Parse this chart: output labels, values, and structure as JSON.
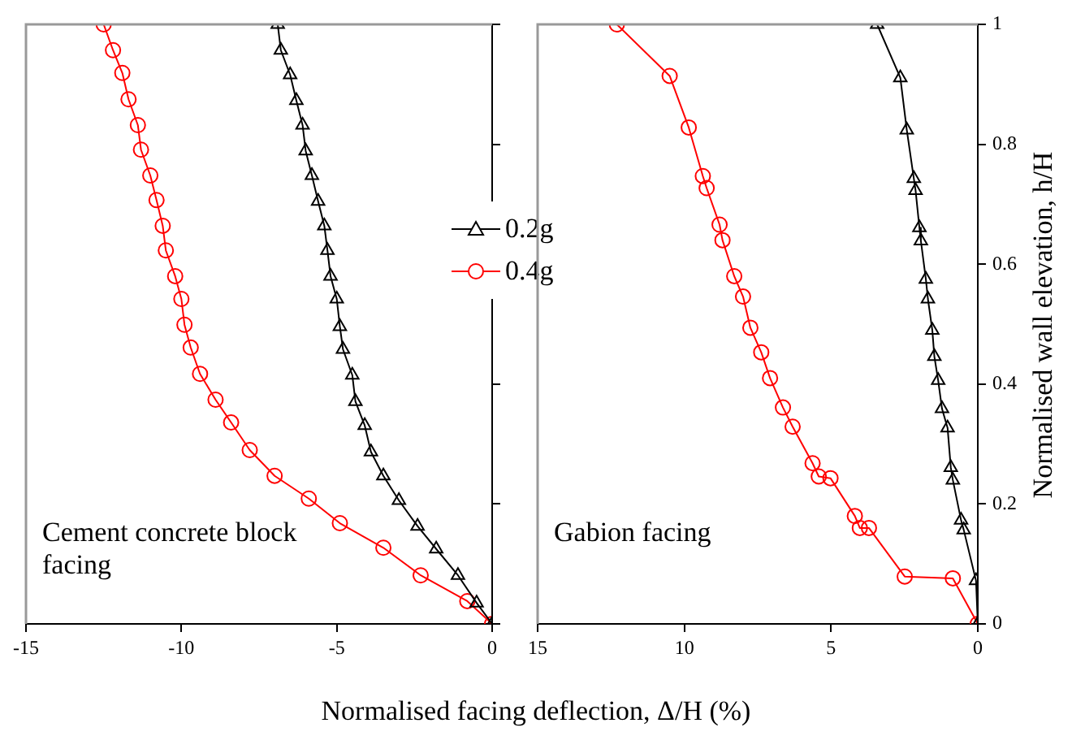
{
  "chart_data": [
    {
      "type": "line",
      "xlabel": "Normalised facing deflection, Δ/H (%)",
      "annotations": [
        "Cement concrete block facing"
      ],
      "xlim": [
        -15,
        0
      ],
      "xticks": [
        -15,
        -10,
        -5,
        0
      ],
      "ylim": [
        0,
        1
      ],
      "yticks": [
        {
          "value": 0,
          "label": null
        },
        {
          "value": 0.2,
          "label": null
        },
        {
          "value": 0.4,
          "label": null
        },
        {
          "value": 0.6,
          "label": null
        },
        {
          "value": 0.8,
          "label": null
        },
        {
          "value": 1,
          "label": null
        }
      ],
      "tick_labels": "x",
      "grid": false,
      "legend": "right",
      "line_style": "solid",
      "series": [
        {
          "name": "0.2g",
          "color": "#000000",
          "marker": "triangle",
          "x": [
            -6.9,
            -6.8,
            -6.5,
            -6.3,
            -6.1,
            -6.0,
            -5.8,
            -5.6,
            -5.4,
            -5.3,
            -5.2,
            -5.0,
            -4.9,
            -4.8,
            -4.5,
            -4.4,
            -4.1,
            -3.9,
            -3.5,
            -3.0,
            -2.4,
            -1.8,
            -1.1,
            -0.5,
            0
          ],
          "values": [
            1,
            0.957,
            0.916,
            0.873,
            0.832,
            0.789,
            0.748,
            0.705,
            0.664,
            0.623,
            0.58,
            0.542,
            0.496,
            0.458,
            0.415,
            0.371,
            0.331,
            0.287,
            0.247,
            0.206,
            0.163,
            0.125,
            0.081,
            0.035,
            0
          ]
        },
        {
          "name": "0.4g",
          "color": "#ff0000",
          "marker": "circle",
          "x": [
            -12.5,
            -12.2,
            -11.9,
            -11.7,
            -11.4,
            -11.3,
            -11.0,
            -10.8,
            -10.6,
            -10.5,
            -10.2,
            -10.0,
            -9.9,
            -9.7,
            -9.4,
            -8.9,
            -8.4,
            -7.8,
            -7.0,
            -5.9,
            -4.9,
            -3.5,
            -2.3,
            -0.8,
            0
          ],
          "values": [
            1,
            0.957,
            0.919,
            0.875,
            0.832,
            0.791,
            0.748,
            0.707,
            0.664,
            0.623,
            0.58,
            0.542,
            0.499,
            0.461,
            0.417,
            0.374,
            0.336,
            0.29,
            0.247,
            0.209,
            0.168,
            0.127,
            0.081,
            0.038,
            0
          ]
        }
      ]
    },
    {
      "type": "line",
      "ylabel": "Normalised wall elevation, h/H",
      "annotations": [
        "Gabion facing"
      ],
      "xlim": [
        15,
        0
      ],
      "xticks": [
        15,
        10,
        5,
        0
      ],
      "ylim": [
        0,
        1
      ],
      "yticks": [
        0,
        0.2,
        0.4,
        0.6,
        0.8,
        1
      ],
      "grid": false,
      "line_style": "solid",
      "series": [
        {
          "color": "#000000",
          "marker": "triangle",
          "x": [
            3.43,
            2.64,
            2.42,
            2.18,
            2.12,
            1.99,
            1.94,
            1.77,
            1.7,
            1.55,
            1.48,
            1.35,
            1.22,
            1.03,
            0.92,
            0.85,
            0.57,
            0.48,
            0.06,
            0
          ],
          "values": [
            1,
            0.911,
            0.824,
            0.743,
            0.723,
            0.661,
            0.639,
            0.575,
            0.542,
            0.49,
            0.446,
            0.406,
            0.359,
            0.327,
            0.261,
            0.24,
            0.173,
            0.157,
            0.072,
            0
          ]
        },
        {
          "color": "#ff0000",
          "marker": "circle",
          "x": [
            12.3,
            10.5,
            9.85,
            9.37,
            9.24,
            8.8,
            8.7,
            8.3,
            8.0,
            7.75,
            7.38,
            7.08,
            6.64,
            6.31,
            5.63,
            5.42,
            5.02,
            4.19,
            4.02,
            3.71,
            2.49,
            0.85,
            0
          ],
          "values": [
            1,
            0.914,
            0.828,
            0.747,
            0.727,
            0.666,
            0.64,
            0.58,
            0.546,
            0.494,
            0.453,
            0.41,
            0.361,
            0.329,
            0.268,
            0.246,
            0.243,
            0.18,
            0.16,
            0.16,
            0.079,
            0.076,
            0
          ]
        }
      ]
    }
  ]
}
